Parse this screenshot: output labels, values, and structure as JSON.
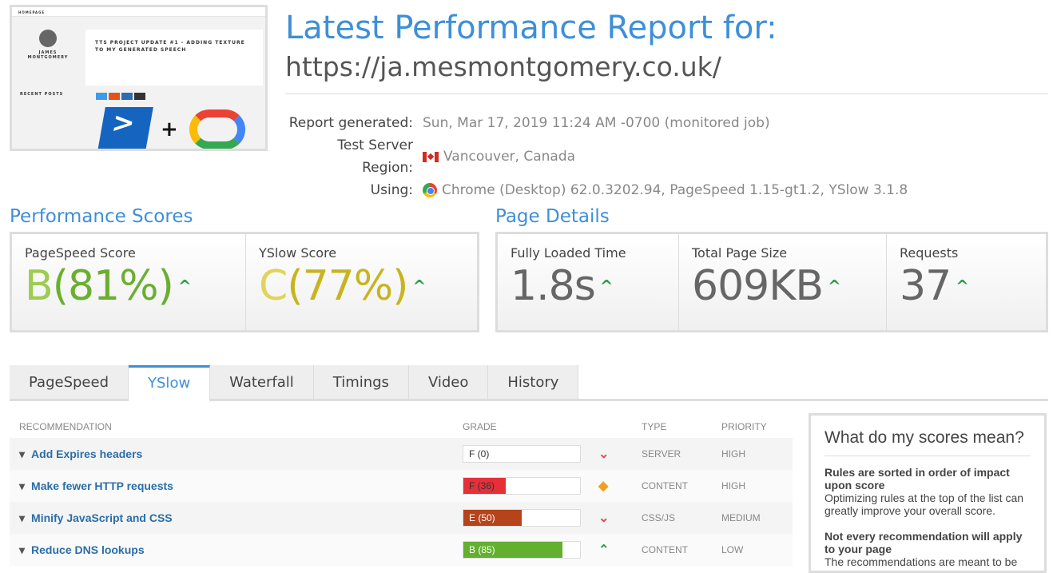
{
  "thumbnail": {
    "nav": "HOMEPAGE",
    "name": "JAMES MONTGOMERY",
    "post_title": "TTS PROJECT UPDATE #1 - ADDING TEXTURE TO MY GENERATED SPEECH",
    "recent": "RECENT POSTS"
  },
  "header": {
    "title": "Latest Performance Report for:",
    "url": "https://ja.mesmontgomery.co.uk/"
  },
  "meta": [
    {
      "label": "Report generated:",
      "value": "Sun, Mar 17, 2019 11:24 AM -0700 (monitored job)",
      "icon": ""
    },
    {
      "label": "Test Server Region:",
      "value": "Vancouver, Canada",
      "icon": "canada-flag-icon"
    },
    {
      "label": "Using:",
      "value": "Chrome (Desktop) 62.0.3202.94, PageSpeed 1.15-gt1.2, YSlow 3.1.8",
      "icon": "chrome-icon"
    }
  ],
  "performance": {
    "title": "Performance Scores",
    "pagespeed": {
      "label": "PageSpeed Score",
      "grade": "B",
      "pct": "(81%)",
      "color": "#6aaf2e"
    },
    "yslow": {
      "label": "YSlow Score",
      "grade": "C",
      "pct": "(77%)",
      "color": "#c8b41e"
    }
  },
  "details": {
    "title": "Page Details",
    "items": [
      {
        "label": "Fully Loaded Time",
        "value": "1.8s"
      },
      {
        "label": "Total Page Size",
        "value": "609KB"
      },
      {
        "label": "Requests",
        "value": "37"
      }
    ]
  },
  "tabs": [
    "PageSpeed",
    "YSlow",
    "Waterfall",
    "Timings",
    "Video",
    "History"
  ],
  "active_tab": "YSlow",
  "table": {
    "headers": [
      "RECOMMENDATION",
      "GRADE",
      "TYPE",
      "PRIORITY"
    ],
    "rows": [
      {
        "name": "Add Expires headers",
        "grade": "F (0)",
        "score": 0,
        "color": "#e03030",
        "trend": "down",
        "type": "SERVER",
        "priority": "HIGH"
      },
      {
        "name": "Make fewer HTTP requests",
        "grade": "F (36)",
        "score": 36,
        "color": "#e5303a",
        "trend": "same",
        "type": "CONTENT",
        "priority": "HIGH"
      },
      {
        "name": "Minify JavaScript and CSS",
        "grade": "E (50)",
        "score": 50,
        "color": "#b5441a",
        "trend": "down",
        "type": "CSS/JS",
        "priority": "MEDIUM"
      },
      {
        "name": "Reduce DNS lookups",
        "grade": "B (85)",
        "score": 85,
        "color": "#62b02e",
        "trend": "up",
        "type": "CONTENT",
        "priority": "LOW"
      }
    ]
  },
  "sidebar": {
    "title": "What do my scores mean?",
    "p1_bold": "Rules are sorted in order of impact upon score",
    "p1": "Optimizing rules at the top of the list can greatly improve your overall score.",
    "p2_bold": "Not every recommendation will apply to your page",
    "p2": "The recommendations are meant to be"
  }
}
